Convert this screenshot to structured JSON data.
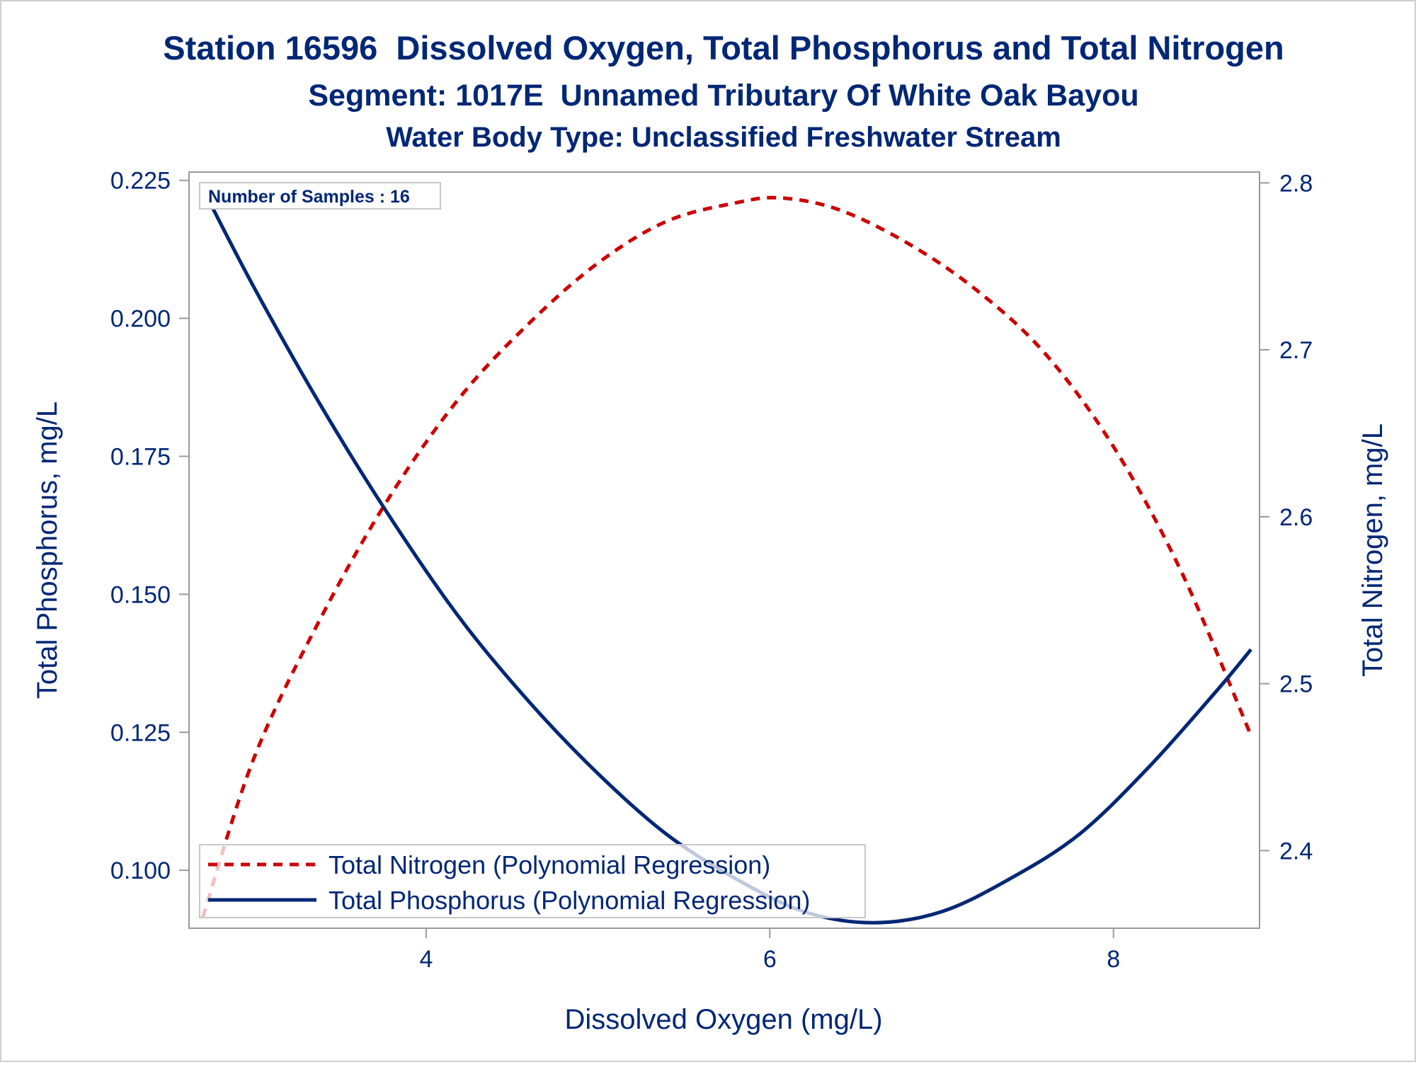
{
  "chart_data": {
    "type": "line",
    "title": "Station 16596  Dissolved Oxygen, Total Phosphorus and Total Nitrogen",
    "subtitle": "Segment: 1017E  Unnamed Tributary Of White Oak Bayou",
    "subtitle2": "Water Body Type: Unclassified Freshwater Stream",
    "xlabel": "Dissolved Oxygen (mg/L)",
    "ylabel": "Total Phosphorus, mg/L",
    "y2label": "Total Nitrogen, mg/L",
    "xlim": [
      2.62,
      8.85
    ],
    "ylim": [
      0.0895,
      0.2265
    ],
    "y2lim": [
      2.3535,
      2.8065
    ],
    "xticks": [
      4,
      6,
      8
    ],
    "yticks": [
      0.1,
      0.125,
      0.15,
      0.175,
      0.2,
      0.225
    ],
    "y2ticks": [
      2.4,
      2.5,
      2.6,
      2.7,
      2.8
    ],
    "grid": false,
    "legend_position": "bottom-left",
    "inset_label": "Number of Samples : 16",
    "series": [
      {
        "name": "Total Nitrogen (Polynomial Regression)",
        "axis": "y2",
        "style": "dashed",
        "color": "#cc0000",
        "x": [
          2.7,
          3.0,
          3.4,
          3.8,
          4.2,
          4.6,
          5.0,
          5.4,
          5.8,
          6.06,
          6.4,
          6.8,
          7.2,
          7.6,
          8.0,
          8.4,
          8.8
        ],
        "values": [
          2.36,
          2.456,
          2.542,
          2.614,
          2.672,
          2.716,
          2.752,
          2.777,
          2.788,
          2.791,
          2.784,
          2.764,
          2.736,
          2.698,
          2.642,
          2.566,
          2.469
        ]
      },
      {
        "name": "Total Phosphorus (Polynomial Regression)",
        "axis": "y",
        "style": "solid",
        "color": "#002776",
        "x": [
          2.7,
          3.0,
          3.4,
          3.8,
          4.2,
          4.6,
          5.0,
          5.4,
          5.8,
          6.2,
          6.6,
          7.0,
          7.4,
          7.8,
          8.2,
          8.6,
          8.8
        ],
        "values": [
          0.2235,
          0.2055,
          0.1835,
          0.1635,
          0.1455,
          0.1305,
          0.1175,
          0.1065,
          0.0985,
          0.0925,
          0.0905,
          0.0925,
          0.0985,
          0.1065,
          0.1185,
          0.1325,
          0.14
        ]
      }
    ]
  }
}
